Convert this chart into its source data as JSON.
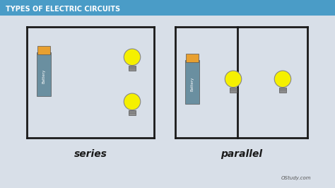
{
  "title": "TYPES OF ELECTRIC CIRCUITS",
  "title_color": "#ffffff",
  "title_bg": "#4a9cc7",
  "bg_color": "#d8dfe8",
  "label_series": "series",
  "label_parallel": "parallel",
  "watermark": "OStudy.com",
  "circuit_line_color": "#1a1a1a",
  "battery_body_color": "#6a8fa0",
  "battery_top_color": "#e8a030",
  "bulb_glass_color": "#f5f000",
  "bulb_base_color": "#909090"
}
